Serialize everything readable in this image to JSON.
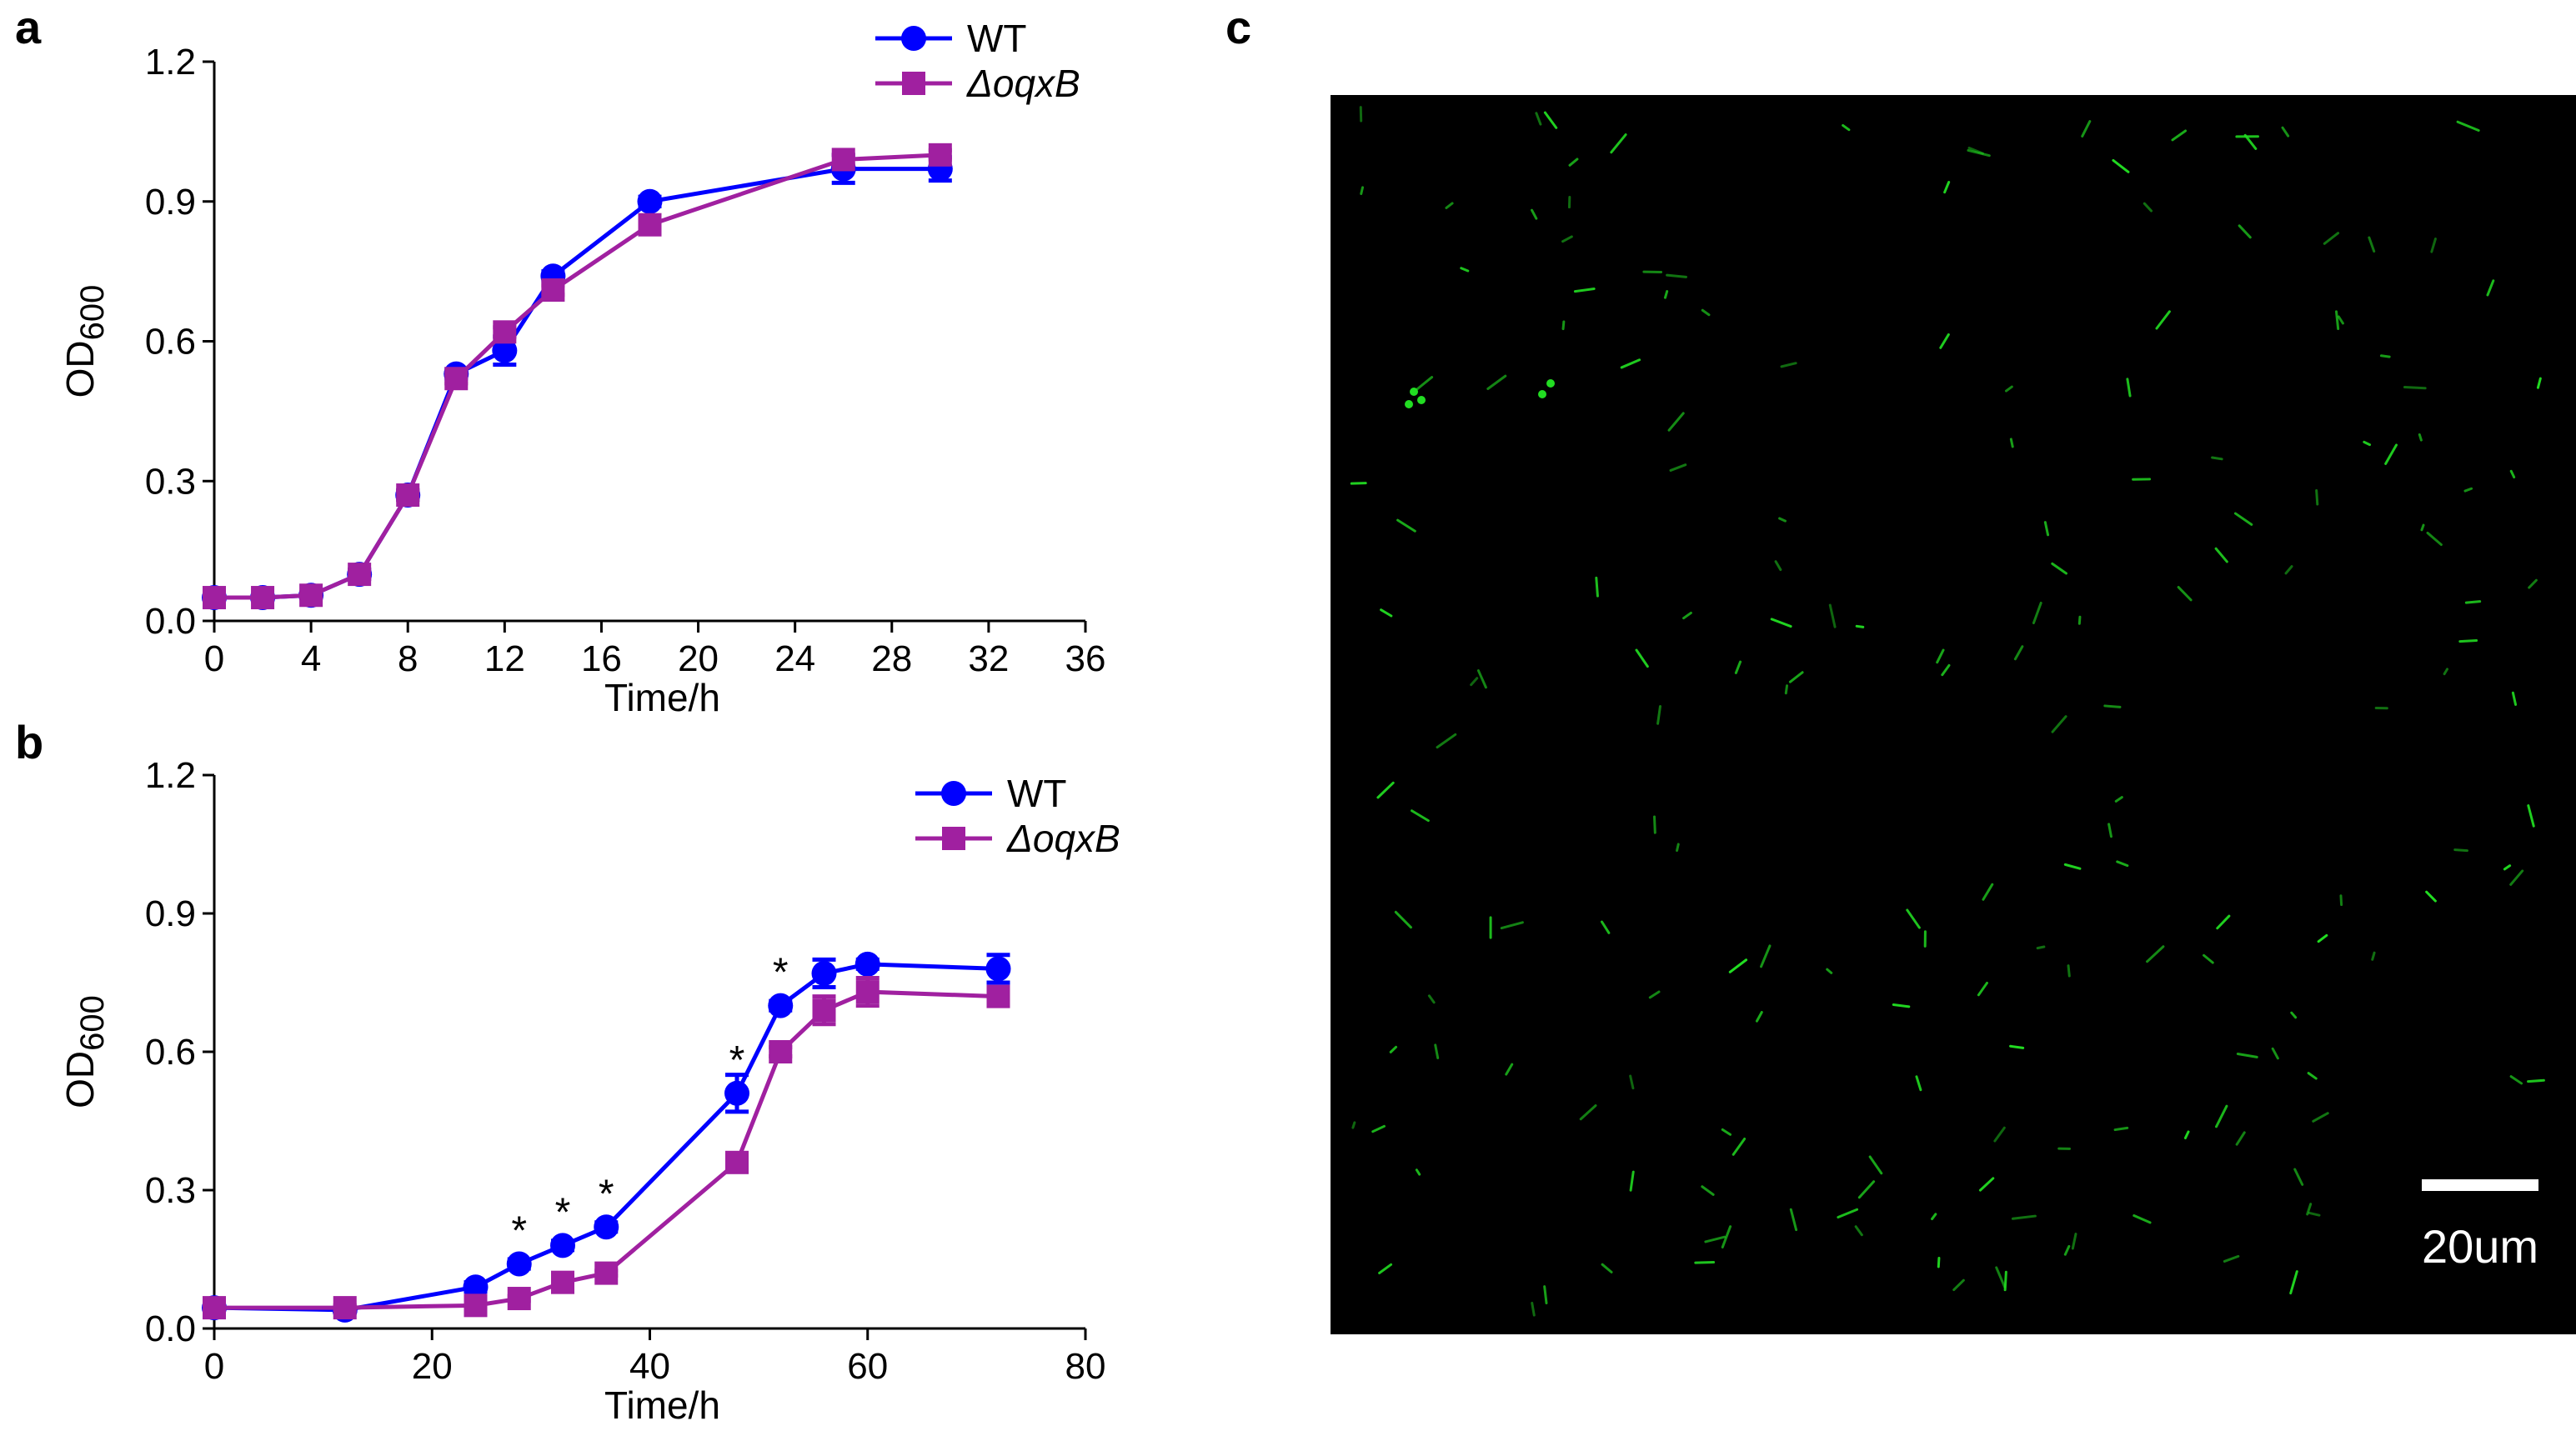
{
  "panel_labels": {
    "a": "a",
    "b": "b",
    "c": "c"
  },
  "colors": {
    "wt": "#0000ff",
    "mutant": "#a020a0",
    "micrograph_bg": "#000000",
    "cells": "#22dd22",
    "scale_bar": "#ffffff"
  },
  "micrograph": {
    "scale_bar_label": "20um"
  },
  "chart_data": [
    {
      "type": "line",
      "panel": "a",
      "title": "",
      "xlabel": "Time/h",
      "ylabel_main": "OD",
      "ylabel_sub": "600",
      "xlim": [
        0,
        36
      ],
      "ylim": [
        0,
        1.2
      ],
      "x_ticks": [
        "0",
        "4",
        "8",
        "12",
        "16",
        "20",
        "24",
        "28",
        "32",
        "36"
      ],
      "y_ticks": [
        "0.0",
        "0.3",
        "0.6",
        "0.9",
        "1.2"
      ],
      "legend_position": "top-right",
      "series": [
        {
          "name": "WT",
          "marker": "circle",
          "x": [
            0,
            2,
            4,
            6,
            8,
            10,
            12,
            14,
            18,
            26,
            30
          ],
          "y": [
            0.05,
            0.05,
            0.055,
            0.1,
            0.27,
            0.53,
            0.58,
            0.74,
            0.9,
            0.97,
            0.97
          ],
          "err": [
            0.005,
            0.005,
            0.005,
            0.01,
            0.01,
            0.01,
            0.03,
            0.01,
            0.01,
            0.03,
            0.025
          ]
        },
        {
          "name": "ΔoqxB",
          "marker": "square",
          "x": [
            0,
            2,
            4,
            6,
            8,
            10,
            12,
            14,
            18,
            26,
            30
          ],
          "y": [
            0.05,
            0.05,
            0.055,
            0.1,
            0.27,
            0.52,
            0.62,
            0.71,
            0.85,
            0.99,
            1.0
          ],
          "err": [
            0.005,
            0.005,
            0.005,
            0.01,
            0.01,
            0.01,
            0.01,
            0.01,
            0.01,
            0.01,
            0.01
          ]
        }
      ],
      "annotations": []
    },
    {
      "type": "line",
      "panel": "b",
      "title": "",
      "xlabel": "Time/h",
      "ylabel_main": "OD",
      "ylabel_sub": "600",
      "xlim": [
        0,
        80
      ],
      "ylim": [
        0,
        1.2
      ],
      "x_ticks": [
        "0",
        "20",
        "40",
        "60",
        "80"
      ],
      "y_ticks": [
        "0.0",
        "0.3",
        "0.6",
        "0.9",
        "1.2"
      ],
      "legend_position": "top-right",
      "series": [
        {
          "name": "WT",
          "marker": "circle",
          "x": [
            0,
            12,
            24,
            28,
            32,
            36,
            48,
            52,
            56,
            60,
            72
          ],
          "y": [
            0.045,
            0.04,
            0.09,
            0.14,
            0.18,
            0.22,
            0.51,
            0.7,
            0.77,
            0.79,
            0.78
          ],
          "err": [
            0.005,
            0.005,
            0.01,
            0.01,
            0.01,
            0.01,
            0.04,
            0.01,
            0.03,
            0.01,
            0.03
          ]
        },
        {
          "name": "ΔoqxB",
          "marker": "square",
          "x": [
            0,
            12,
            24,
            28,
            32,
            36,
            48,
            52,
            56,
            60,
            72
          ],
          "y": [
            0.045,
            0.045,
            0.05,
            0.065,
            0.1,
            0.12,
            0.36,
            0.6,
            0.69,
            0.73,
            0.72
          ],
          "err": [
            0.005,
            0.005,
            0.005,
            0.005,
            0.005,
            0.005,
            0.01,
            0.01,
            0.03,
            0.03,
            0.01
          ]
        }
      ],
      "annotations": [
        {
          "text": "*",
          "x": 28,
          "y": 0.14
        },
        {
          "text": "*",
          "x": 32,
          "y": 0.18
        },
        {
          "text": "*",
          "x": 36,
          "y": 0.22
        },
        {
          "text": "*",
          "x": 48,
          "y": 0.51
        },
        {
          "text": "*",
          "x": 52,
          "y": 0.7
        }
      ]
    }
  ]
}
